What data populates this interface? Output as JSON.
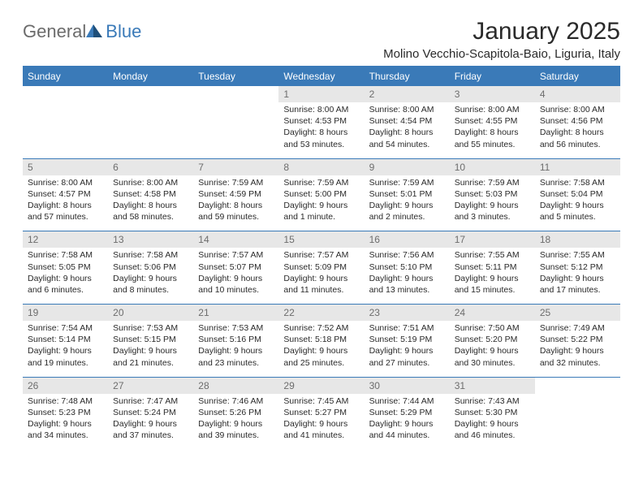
{
  "brand": {
    "part1": "General",
    "part2": "Blue"
  },
  "title": "January 2025",
  "location": "Molino Vecchio-Scapitola-Baio, Liguria, Italy",
  "colors": {
    "accent": "#3a7ab8",
    "header_text": "#ffffff",
    "daynum_bg": "#e7e7e7",
    "daynum_text": "#6d6d6d",
    "body_text": "#2a2a2a",
    "logo_gray": "#6b6b6b"
  },
  "days_of_week": [
    "Sunday",
    "Monday",
    "Tuesday",
    "Wednesday",
    "Thursday",
    "Friday",
    "Saturday"
  ],
  "weeks": [
    [
      null,
      null,
      null,
      {
        "n": "1",
        "sr": "8:00 AM",
        "ss": "4:53 PM",
        "dl": "8 hours and 53 minutes."
      },
      {
        "n": "2",
        "sr": "8:00 AM",
        "ss": "4:54 PM",
        "dl": "8 hours and 54 minutes."
      },
      {
        "n": "3",
        "sr": "8:00 AM",
        "ss": "4:55 PM",
        "dl": "8 hours and 55 minutes."
      },
      {
        "n": "4",
        "sr": "8:00 AM",
        "ss": "4:56 PM",
        "dl": "8 hours and 56 minutes."
      }
    ],
    [
      {
        "n": "5",
        "sr": "8:00 AM",
        "ss": "4:57 PM",
        "dl": "8 hours and 57 minutes."
      },
      {
        "n": "6",
        "sr": "8:00 AM",
        "ss": "4:58 PM",
        "dl": "8 hours and 58 minutes."
      },
      {
        "n": "7",
        "sr": "7:59 AM",
        "ss": "4:59 PM",
        "dl": "8 hours and 59 minutes."
      },
      {
        "n": "8",
        "sr": "7:59 AM",
        "ss": "5:00 PM",
        "dl": "9 hours and 1 minute."
      },
      {
        "n": "9",
        "sr": "7:59 AM",
        "ss": "5:01 PM",
        "dl": "9 hours and 2 minutes."
      },
      {
        "n": "10",
        "sr": "7:59 AM",
        "ss": "5:03 PM",
        "dl": "9 hours and 3 minutes."
      },
      {
        "n": "11",
        "sr": "7:58 AM",
        "ss": "5:04 PM",
        "dl": "9 hours and 5 minutes."
      }
    ],
    [
      {
        "n": "12",
        "sr": "7:58 AM",
        "ss": "5:05 PM",
        "dl": "9 hours and 6 minutes."
      },
      {
        "n": "13",
        "sr": "7:58 AM",
        "ss": "5:06 PM",
        "dl": "9 hours and 8 minutes."
      },
      {
        "n": "14",
        "sr": "7:57 AM",
        "ss": "5:07 PM",
        "dl": "9 hours and 10 minutes."
      },
      {
        "n": "15",
        "sr": "7:57 AM",
        "ss": "5:09 PM",
        "dl": "9 hours and 11 minutes."
      },
      {
        "n": "16",
        "sr": "7:56 AM",
        "ss": "5:10 PM",
        "dl": "9 hours and 13 minutes."
      },
      {
        "n": "17",
        "sr": "7:55 AM",
        "ss": "5:11 PM",
        "dl": "9 hours and 15 minutes."
      },
      {
        "n": "18",
        "sr": "7:55 AM",
        "ss": "5:12 PM",
        "dl": "9 hours and 17 minutes."
      }
    ],
    [
      {
        "n": "19",
        "sr": "7:54 AM",
        "ss": "5:14 PM",
        "dl": "9 hours and 19 minutes."
      },
      {
        "n": "20",
        "sr": "7:53 AM",
        "ss": "5:15 PM",
        "dl": "9 hours and 21 minutes."
      },
      {
        "n": "21",
        "sr": "7:53 AM",
        "ss": "5:16 PM",
        "dl": "9 hours and 23 minutes."
      },
      {
        "n": "22",
        "sr": "7:52 AM",
        "ss": "5:18 PM",
        "dl": "9 hours and 25 minutes."
      },
      {
        "n": "23",
        "sr": "7:51 AM",
        "ss": "5:19 PM",
        "dl": "9 hours and 27 minutes."
      },
      {
        "n": "24",
        "sr": "7:50 AM",
        "ss": "5:20 PM",
        "dl": "9 hours and 30 minutes."
      },
      {
        "n": "25",
        "sr": "7:49 AM",
        "ss": "5:22 PM",
        "dl": "9 hours and 32 minutes."
      }
    ],
    [
      {
        "n": "26",
        "sr": "7:48 AM",
        "ss": "5:23 PM",
        "dl": "9 hours and 34 minutes."
      },
      {
        "n": "27",
        "sr": "7:47 AM",
        "ss": "5:24 PM",
        "dl": "9 hours and 37 minutes."
      },
      {
        "n": "28",
        "sr": "7:46 AM",
        "ss": "5:26 PM",
        "dl": "9 hours and 39 minutes."
      },
      {
        "n": "29",
        "sr": "7:45 AM",
        "ss": "5:27 PM",
        "dl": "9 hours and 41 minutes."
      },
      {
        "n": "30",
        "sr": "7:44 AM",
        "ss": "5:29 PM",
        "dl": "9 hours and 44 minutes."
      },
      {
        "n": "31",
        "sr": "7:43 AM",
        "ss": "5:30 PM",
        "dl": "9 hours and 46 minutes."
      },
      null
    ]
  ],
  "labels": {
    "sunrise": "Sunrise:",
    "sunset": "Sunset:",
    "daylight": "Daylight:"
  }
}
